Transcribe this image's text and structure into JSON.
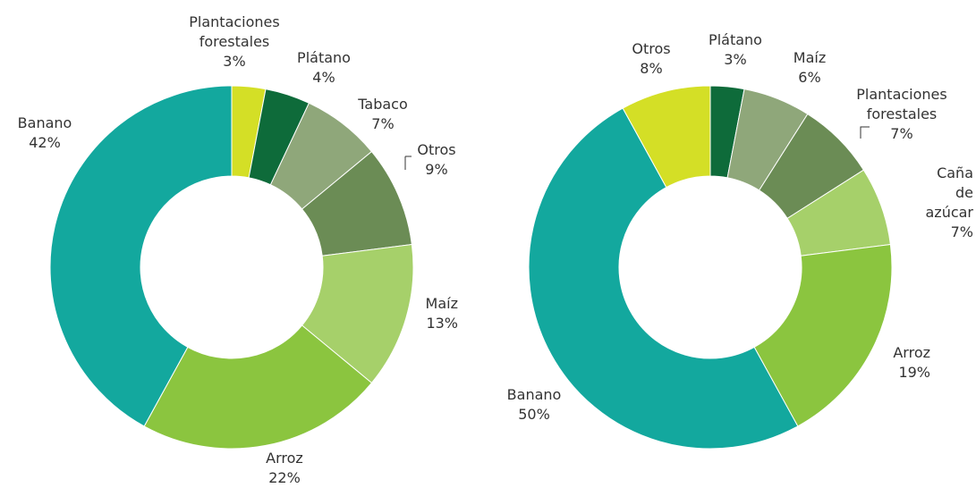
{
  "chart_data": [
    {
      "type": "donut",
      "categories": [
        "Plantaciones\nforestales",
        "Plátano",
        "Tabaco",
        "Otros",
        "Maíz",
        "Arroz",
        "Banano"
      ],
      "values": [
        3,
        4,
        7,
        9,
        13,
        22,
        42
      ],
      "value_labels": [
        "3%",
        "4%",
        "7%",
        "9%",
        "13%",
        "22%",
        "42%"
      ],
      "colors": [
        "#d4df26",
        "#0e6b3a",
        "#8fa77a",
        "#6b8c55",
        "#a6d06a",
        "#8bc53f",
        "#13a89e"
      ]
    },
    {
      "type": "donut",
      "categories": [
        "Plátano",
        "Maíz",
        "Plantaciones\nforestales",
        "Caña\nde azúcar",
        "Arroz",
        "Banano",
        "Otros"
      ],
      "values": [
        3,
        6,
        7,
        7,
        19,
        50,
        8
      ],
      "value_labels": [
        "3%",
        "6%",
        "7%",
        "7%",
        "19%",
        "50%",
        "8%"
      ],
      "colors": [
        "#0e6b3a",
        "#8fa77a",
        "#6b8c55",
        "#a6d06a",
        "#8bc53f",
        "#13a89e",
        "#d4df26"
      ]
    }
  ]
}
